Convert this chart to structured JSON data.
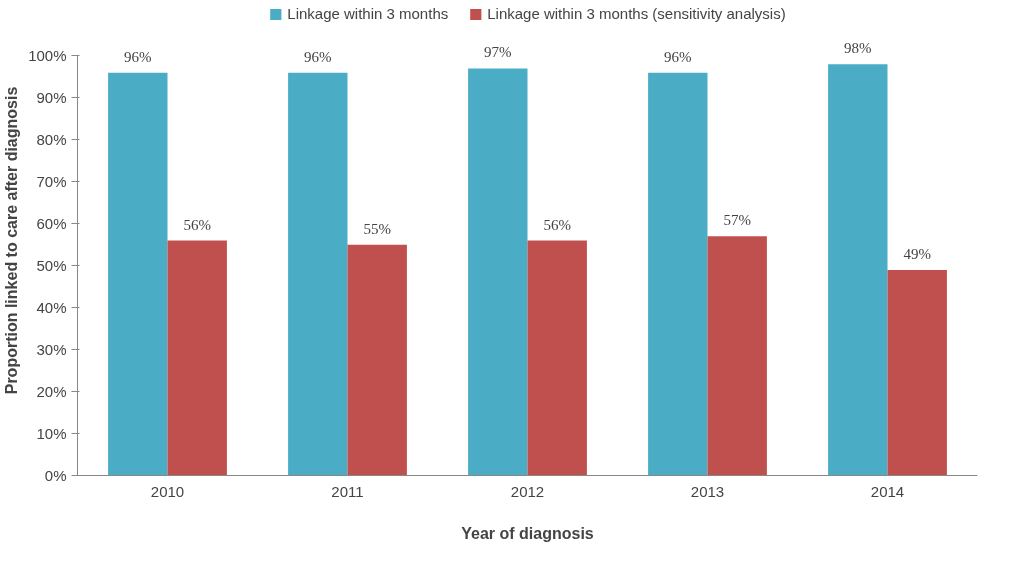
{
  "chart_data": {
    "type": "bar",
    "xlabel": "Year of diagnosis",
    "ylabel": "Proportion linked to care after diagnosis",
    "categories": [
      "2010",
      "2011",
      "2012",
      "2013",
      "2014"
    ],
    "series": [
      {
        "name": "Linkage within 3 months",
        "color": "#4bacc6",
        "values": [
          96,
          96,
          97,
          96,
          98
        ],
        "value_labels": [
          "96%",
          "96%",
          "97%",
          "96%",
          "98%"
        ]
      },
      {
        "name": "Linkage within 3 months (sensitivity analysis)",
        "color": "#c0504d",
        "values": [
          56,
          55,
          56,
          57,
          49
        ],
        "value_labels": [
          "56%",
          "55%",
          "56%",
          "57%",
          "49%"
        ]
      }
    ],
    "ylim": [
      0,
      100
    ],
    "yticks": [
      {
        "value": 0,
        "label": "0%"
      },
      {
        "value": 10,
        "label": "10%"
      },
      {
        "value": 20,
        "label": "20%"
      },
      {
        "value": 30,
        "label": "30%"
      },
      {
        "value": 40,
        "label": "40%"
      },
      {
        "value": 50,
        "label": "50%"
      },
      {
        "value": 60,
        "label": "60%"
      },
      {
        "value": 70,
        "label": "70%"
      },
      {
        "value": 80,
        "label": "80%"
      },
      {
        "value": 90,
        "label": "90%"
      },
      {
        "value": 100,
        "label": "100%"
      }
    ],
    "grid": false,
    "legend": "top"
  }
}
